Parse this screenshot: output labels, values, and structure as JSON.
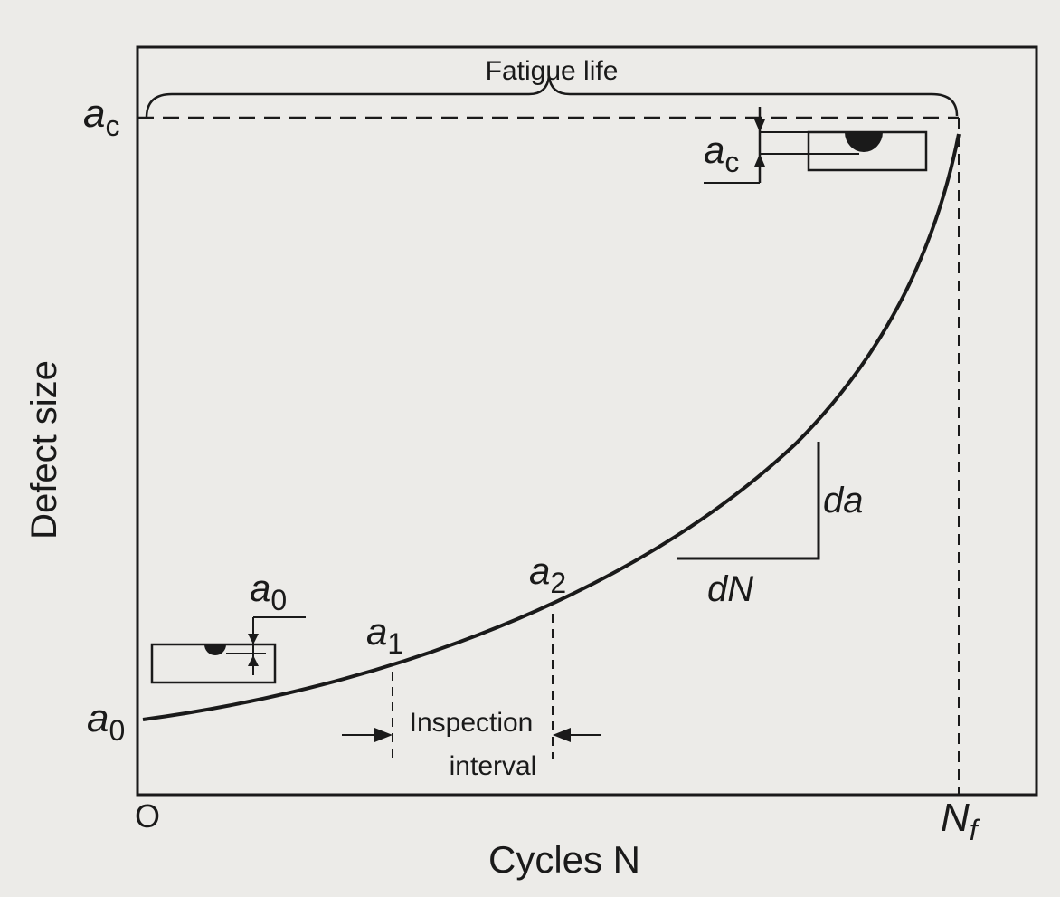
{
  "diagram": {
    "title_bracket": "Fatigue life",
    "axes": {
      "x_label": "Cycles N",
      "y_label": "Defect size",
      "origin_label": "O"
    },
    "y_marks": {
      "critical": {
        "main": "a",
        "sub": "c"
      },
      "initial": {
        "main": "a",
        "sub": "0"
      }
    },
    "x_marks": {
      "final": {
        "main": "N",
        "sub": "f"
      }
    },
    "points": {
      "p1": {
        "main": "a",
        "sub": "1"
      },
      "p2": {
        "main": "a",
        "sub": "2"
      }
    },
    "slope": {
      "rise": "da",
      "run": "dN"
    },
    "inspection": {
      "line1": "Inspection",
      "line2": "interval"
    },
    "insets": {
      "initial_defect": {
        "main": "a",
        "sub": "0"
      },
      "critical_defect": {
        "main": "a",
        "sub": "c"
      }
    }
  },
  "colors": {
    "ink": "#1a1a1a",
    "background": "#ecebe8"
  }
}
